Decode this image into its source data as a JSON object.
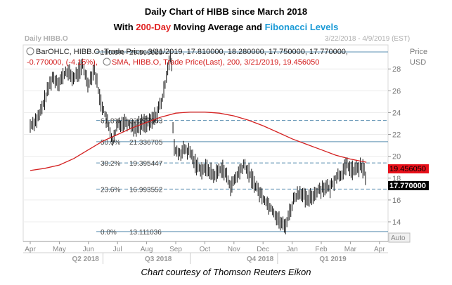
{
  "title_line1": "Daily Chart of HIBB since March 2018",
  "title_line2_pre": "With ",
  "title_line2_red": "200-Day",
  "title_line2_mid": " Moving Average and ",
  "title_line2_blue": "Fibonacci Levels",
  "caption": "Chart courtesy of Thomson Reuters Eikon",
  "header_left": "Daily HIBB.O",
  "header_right": "3/22/2018 - 4/9/2019 (EST)",
  "axis_units_top": "Price",
  "axis_units_bottom": "USD",
  "auto_label": "Auto",
  "legend_line1": "BarOHLC, HIBB.O, Trade Price, 3/21/2019, 17.810000, 18.280000, 17.750000, 17.770000,",
  "legend_line2a": "-0.770000, (-4.15%),",
  "legend_line2b": "SMA, HIBB.O, Trade Price(Last),  200, 3/21/2019, 19.456050",
  "chart_data": {
    "type": "line",
    "y_ticks": [
      14,
      16,
      18,
      20,
      22,
      24,
      26,
      28
    ],
    "y_range": [
      12.2,
      30.2
    ],
    "x_months": [
      "Apr",
      "May",
      "Jun",
      "Jul",
      "Aug",
      "Sep",
      "Oct",
      "Nov",
      "Dec",
      "Jan",
      "Feb",
      "Mar",
      "Apr"
    ],
    "quarters": [
      "Q2 2018",
      "Q3 2018",
      "Q4 2018",
      "Q1 2019"
    ],
    "colors": {
      "sma": "#d42020",
      "price": "#000000",
      "fib": "#5a8fb0",
      "last_price_bg": "#000000",
      "sma_badge_bg": "#e8101a"
    },
    "fibonacci": [
      {
        "level": "0.0%",
        "value": 13.111036,
        "label": "13.111036"
      },
      {
        "level": "23.6%",
        "value": 16.993552,
        "label": "16.993552"
      },
      {
        "level": "38.2%",
        "value": 19.395447,
        "label": "19.395447"
      },
      {
        "level": "50.0%",
        "value": 21.336705,
        "label": "21.336705"
      },
      {
        "level": "61.8%",
        "value": 23.277963,
        "label": "23.277963"
      },
      {
        "level": "100.0%",
        "value": 29.56,
        "label": "29.560000"
      }
    ],
    "last_price": "17.770000",
    "sma_last": "19.456050",
    "price_series": [
      {
        "m": 0.0,
        "v": 22.8
      },
      {
        "m": 0.3,
        "v": 23.6
      },
      {
        "m": 0.55,
        "v": 25.6
      },
      {
        "m": 0.75,
        "v": 27.2
      },
      {
        "m": 1.0,
        "v": 26.8
      },
      {
        "m": 1.25,
        "v": 27.8
      },
      {
        "m": 1.5,
        "v": 27.1
      },
      {
        "m": 1.8,
        "v": 28.3
      },
      {
        "m": 2.0,
        "v": 26.6
      },
      {
        "m": 2.2,
        "v": 28.1
      },
      {
        "m": 2.4,
        "v": 25.2
      },
      {
        "m": 2.55,
        "v": 24.0
      },
      {
        "m": 2.7,
        "v": 22.6
      },
      {
        "m": 2.85,
        "v": 21.3
      },
      {
        "m": 3.0,
        "v": 22.9
      },
      {
        "m": 3.3,
        "v": 23.2
      },
      {
        "m": 3.6,
        "v": 22.6
      },
      {
        "m": 3.9,
        "v": 23.1
      },
      {
        "m": 4.1,
        "v": 23.0
      },
      {
        "m": 4.35,
        "v": 23.9
      },
      {
        "m": 4.55,
        "v": 25.3
      },
      {
        "m": 4.75,
        "v": 28.6
      },
      {
        "m": 4.85,
        "v": 29.4
      },
      {
        "m": 4.92,
        "v": 20.8
      },
      {
        "m": 5.1,
        "v": 20.2
      },
      {
        "m": 5.3,
        "v": 20.6
      },
      {
        "m": 5.5,
        "v": 20.3
      },
      {
        "m": 5.7,
        "v": 19.2
      },
      {
        "m": 5.9,
        "v": 18.8
      },
      {
        "m": 6.1,
        "v": 18.9
      },
      {
        "m": 6.3,
        "v": 18.2
      },
      {
        "m": 6.6,
        "v": 19.0
      },
      {
        "m": 6.9,
        "v": 17.2
      },
      {
        "m": 7.15,
        "v": 18.4
      },
      {
        "m": 7.35,
        "v": 19.2
      },
      {
        "m": 7.55,
        "v": 18.3
      },
      {
        "m": 7.8,
        "v": 17.0
      },
      {
        "m": 8.0,
        "v": 16.2
      },
      {
        "m": 8.3,
        "v": 15.2
      },
      {
        "m": 8.55,
        "v": 14.1
      },
      {
        "m": 8.75,
        "v": 13.5
      },
      {
        "m": 8.9,
        "v": 14.8
      },
      {
        "m": 9.1,
        "v": 16.3
      },
      {
        "m": 9.3,
        "v": 16.8
      },
      {
        "m": 9.5,
        "v": 15.9
      },
      {
        "m": 9.7,
        "v": 16.4
      },
      {
        "m": 9.9,
        "v": 16.9
      },
      {
        "m": 10.1,
        "v": 17.2
      },
      {
        "m": 10.3,
        "v": 17.0
      },
      {
        "m": 10.5,
        "v": 18.1
      },
      {
        "m": 10.7,
        "v": 18.4
      },
      {
        "m": 10.9,
        "v": 19.2
      },
      {
        "m": 11.1,
        "v": 18.6
      },
      {
        "m": 11.3,
        "v": 19.0
      },
      {
        "m": 11.45,
        "v": 18.9
      },
      {
        "m": 11.55,
        "v": 17.77
      }
    ],
    "sma_series": [
      {
        "m": 0.0,
        "v": 18.7
      },
      {
        "m": 0.5,
        "v": 18.9
      },
      {
        "m": 1.0,
        "v": 19.2
      },
      {
        "m": 1.5,
        "v": 19.8
      },
      {
        "m": 2.0,
        "v": 20.6
      },
      {
        "m": 2.5,
        "v": 21.4
      },
      {
        "m": 3.0,
        "v": 22.0
      },
      {
        "m": 3.5,
        "v": 22.6
      },
      {
        "m": 4.0,
        "v": 23.1
      },
      {
        "m": 4.5,
        "v": 23.6
      },
      {
        "m": 5.0,
        "v": 23.95
      },
      {
        "m": 5.5,
        "v": 24.05
      },
      {
        "m": 6.0,
        "v": 24.05
      },
      {
        "m": 6.5,
        "v": 23.95
      },
      {
        "m": 7.0,
        "v": 23.7
      },
      {
        "m": 7.5,
        "v": 23.3
      },
      {
        "m": 8.0,
        "v": 22.8
      },
      {
        "m": 8.5,
        "v": 22.2
      },
      {
        "m": 9.0,
        "v": 21.6
      },
      {
        "m": 9.5,
        "v": 21.1
      },
      {
        "m": 10.0,
        "v": 20.6
      },
      {
        "m": 10.5,
        "v": 20.1
      },
      {
        "m": 11.0,
        "v": 19.75
      },
      {
        "m": 11.55,
        "v": 19.456
      }
    ]
  }
}
